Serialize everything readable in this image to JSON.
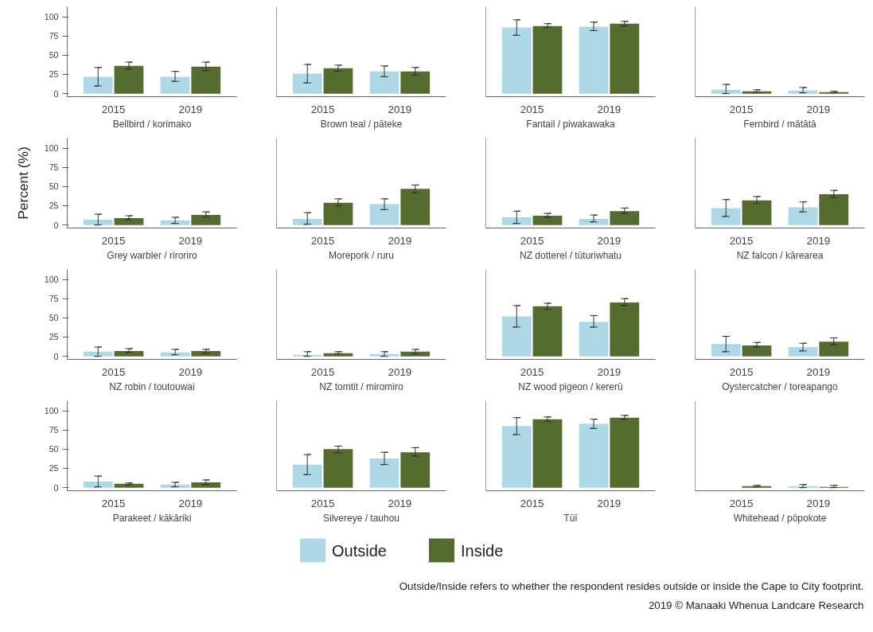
{
  "chart_data": [
    {
      "type": "bar",
      "categories": [
        "2015",
        "2019"
      ],
      "xlabel": "Bellbird / korimako",
      "legend": "bottom",
      "ylim": [
        -4,
        113
      ],
      "yticks": [
        0,
        25,
        50,
        75,
        100
      ],
      "series": [
        {
          "name": "Outside",
          "color": "#add8e6",
          "values": [
            22,
            22
          ],
          "errors": [
            [
              10,
              34
            ],
            [
              16,
              29
            ]
          ]
        },
        {
          "name": "Inside",
          "color": "#556b2f",
          "values": [
            36,
            35
          ],
          "errors": [
            [
              32,
              41
            ],
            [
              30,
              41
            ]
          ]
        }
      ]
    },
    {
      "type": "bar",
      "categories": [
        "2015",
        "2019"
      ],
      "xlabel": "Brown teal / pāteke",
      "ylim": [
        -4,
        113
      ],
      "tick_labels": "x",
      "series": [
        {
          "color": "#add8e6",
          "values": [
            26,
            29
          ],
          "errors": [
            [
              14,
              38
            ],
            [
              22,
              36
            ]
          ]
        },
        {
          "color": "#556b2f",
          "values": [
            33,
            29
          ],
          "errors": [
            [
              29,
              37
            ],
            [
              24,
              34
            ]
          ]
        }
      ]
    },
    {
      "type": "bar",
      "categories": [
        "2015",
        "2019"
      ],
      "xlabel": "Fantail / piwakawaka",
      "ylim": [
        -4,
        113
      ],
      "tick_labels": "x",
      "series": [
        {
          "color": "#add8e6",
          "values": [
            86,
            87
          ],
          "errors": [
            [
              76,
              96
            ],
            [
              82,
              93
            ]
          ]
        },
        {
          "color": "#556b2f",
          "values": [
            88,
            91
          ],
          "errors": [
            [
              86,
              91
            ],
            [
              88,
              94
            ]
          ]
        }
      ]
    },
    {
      "type": "bar",
      "categories": [
        "2015",
        "2019"
      ],
      "xlabel": "Fernbird / mātātā",
      "ylim": [
        -4,
        113
      ],
      "tick_labels": "x",
      "series": [
        {
          "color": "#add8e6",
          "values": [
            5,
            4
          ],
          "errors": [
            [
              0,
              12
            ],
            [
              1,
              8
            ]
          ]
        },
        {
          "color": "#556b2f",
          "values": [
            3,
            2
          ],
          "errors": [
            [
              2,
              5
            ],
            [
              1,
              3
            ]
          ]
        }
      ]
    },
    {
      "type": "bar",
      "categories": [
        "2015",
        "2019"
      ],
      "xlabel": "Grey warbler / riroriro",
      "ylabel": "Percent (%)",
      "ylim": [
        -4,
        113
      ],
      "yticks": [
        0,
        25,
        50,
        75,
        100
      ],
      "series": [
        {
          "color": "#add8e6",
          "values": [
            7,
            6
          ],
          "errors": [
            [
              0,
              14
            ],
            [
              2,
              10
            ]
          ]
        },
        {
          "color": "#556b2f",
          "values": [
            9,
            13
          ],
          "errors": [
            [
              7,
              12
            ],
            [
              10,
              17
            ]
          ]
        }
      ]
    },
    {
      "type": "bar",
      "categories": [
        "2015",
        "2019"
      ],
      "xlabel": "Morepork / ruru",
      "ylim": [
        -4,
        113
      ],
      "tick_labels": "x",
      "series": [
        {
          "color": "#add8e6",
          "values": [
            8,
            27
          ],
          "errors": [
            [
              1,
              16
            ],
            [
              20,
              34
            ]
          ]
        },
        {
          "color": "#556b2f",
          "values": [
            29,
            47
          ],
          "errors": [
            [
              25,
              34
            ],
            [
              42,
              52
            ]
          ]
        }
      ]
    },
    {
      "type": "bar",
      "categories": [
        "2015",
        "2019"
      ],
      "xlabel": "NZ dotterel / tūturiwhatu",
      "ylim": [
        -4,
        113
      ],
      "tick_labels": "x",
      "series": [
        {
          "color": "#add8e6",
          "values": [
            10,
            8
          ],
          "errors": [
            [
              2,
              18
            ],
            [
              4,
              13
            ]
          ]
        },
        {
          "color": "#556b2f",
          "values": [
            12,
            18
          ],
          "errors": [
            [
              10,
              15
            ],
            [
              15,
              22
            ]
          ]
        }
      ]
    },
    {
      "type": "bar",
      "categories": [
        "2015",
        "2019"
      ],
      "xlabel": "NZ falcon / kārearea",
      "ylim": [
        -4,
        113
      ],
      "tick_labels": "x",
      "series": [
        {
          "color": "#add8e6",
          "values": [
            22,
            23
          ],
          "errors": [
            [
              11,
              33
            ],
            [
              17,
              30
            ]
          ]
        },
        {
          "color": "#556b2f",
          "values": [
            32,
            40
          ],
          "errors": [
            [
              28,
              37
            ],
            [
              36,
              45
            ]
          ]
        }
      ]
    },
    {
      "type": "bar",
      "categories": [
        "2015",
        "2019"
      ],
      "xlabel": "NZ robin / toutouwai",
      "ylim": [
        -4,
        113
      ],
      "yticks": [
        0,
        25,
        50,
        75,
        100
      ],
      "series": [
        {
          "color": "#add8e6",
          "values": [
            6,
            5
          ],
          "errors": [
            [
              0,
              12
            ],
            [
              2,
              9
            ]
          ]
        },
        {
          "color": "#556b2f",
          "values": [
            7,
            7
          ],
          "errors": [
            [
              5,
              10
            ],
            [
              4,
              9
            ]
          ]
        }
      ]
    },
    {
      "type": "bar",
      "categories": [
        "2015",
        "2019"
      ],
      "xlabel": "NZ tomtit / miromiro",
      "ylim": [
        -4,
        113
      ],
      "tick_labels": "x",
      "series": [
        {
          "color": "#add8e6",
          "values": [
            2,
            3
          ],
          "errors": [
            [
              0,
              6
            ],
            [
              0,
              6
            ]
          ]
        },
        {
          "color": "#556b2f",
          "values": [
            4,
            6
          ],
          "errors": [
            [
              3,
              6
            ],
            [
              3,
              9
            ]
          ]
        }
      ]
    },
    {
      "type": "bar",
      "categories": [
        "2015",
        "2019"
      ],
      "xlabel": "NZ wood pigeon / kererū",
      "ylim": [
        -4,
        113
      ],
      "tick_labels": "x",
      "series": [
        {
          "color": "#add8e6",
          "values": [
            52,
            45
          ],
          "errors": [
            [
              38,
              66
            ],
            [
              38,
              53
            ]
          ]
        },
        {
          "color": "#556b2f",
          "values": [
            65,
            70
          ],
          "errors": [
            [
              61,
              69
            ],
            [
              66,
              75
            ]
          ]
        }
      ]
    },
    {
      "type": "bar",
      "categories": [
        "2015",
        "2019"
      ],
      "xlabel": "Oystercatcher / toreapango",
      "ylim": [
        -4,
        113
      ],
      "tick_labels": "x",
      "series": [
        {
          "color": "#add8e6",
          "values": [
            16,
            12
          ],
          "errors": [
            [
              6,
              26
            ],
            [
              7,
              17
            ]
          ]
        },
        {
          "color": "#556b2f",
          "values": [
            14,
            19
          ],
          "errors": [
            [
              12,
              18
            ],
            [
              15,
              24
            ]
          ]
        }
      ]
    },
    {
      "type": "bar",
      "categories": [
        "2015",
        "2019"
      ],
      "xlabel": "Parakeet / kākāriki",
      "ylim": [
        -4,
        113
      ],
      "yticks": [
        0,
        25,
        50,
        75,
        100
      ],
      "series": [
        {
          "color": "#add8e6",
          "values": [
            8,
            4
          ],
          "errors": [
            [
              1,
              15
            ],
            [
              1,
              7
            ]
          ]
        },
        {
          "color": "#556b2f",
          "values": [
            5,
            7
          ],
          "errors": [
            [
              3,
              6
            ],
            [
              4,
              10
            ]
          ]
        }
      ]
    },
    {
      "type": "bar",
      "categories": [
        "2015",
        "2019"
      ],
      "xlabel": "Silvereye / tauhou",
      "ylim": [
        -4,
        113
      ],
      "tick_labels": "x",
      "series": [
        {
          "color": "#add8e6",
          "values": [
            30,
            38
          ],
          "errors": [
            [
              17,
              43
            ],
            [
              30,
              46
            ]
          ]
        },
        {
          "color": "#556b2f",
          "values": [
            50,
            46
          ],
          "errors": [
            [
              45,
              54
            ],
            [
              41,
              52
            ]
          ]
        }
      ]
    },
    {
      "type": "bar",
      "categories": [
        "2015",
        "2019"
      ],
      "xlabel": "Tūī",
      "ylim": [
        -4,
        113
      ],
      "tick_labels": "x",
      "series": [
        {
          "color": "#add8e6",
          "values": [
            80,
            83
          ],
          "errors": [
            [
              69,
              91
            ],
            [
              77,
              89
            ]
          ]
        },
        {
          "color": "#556b2f",
          "values": [
            89,
            91
          ],
          "errors": [
            [
              86,
              92
            ],
            [
              89,
              94
            ]
          ]
        }
      ]
    },
    {
      "type": "bar",
      "categories": [
        "2015",
        "2019"
      ],
      "xlabel": "Whitehead / pōpokote",
      "ylim": [
        -4,
        113
      ],
      "tick_labels": "x",
      "annotations": [
        "Outside/Inside refers to whether the respondent resides outside or inside the Cape to City footprint.",
        "2019 © Manaaki Whenua Landcare Research"
      ],
      "series": [
        {
          "color": "#add8e6",
          "values": [
            null,
            2
          ],
          "errors": [
            null,
            [
              0,
              4
            ]
          ]
        },
        {
          "color": "#556b2f",
          "values": [
            2,
            1
          ],
          "errors": [
            [
              1,
              3
            ],
            [
              0,
              3
            ]
          ]
        }
      ]
    }
  ]
}
